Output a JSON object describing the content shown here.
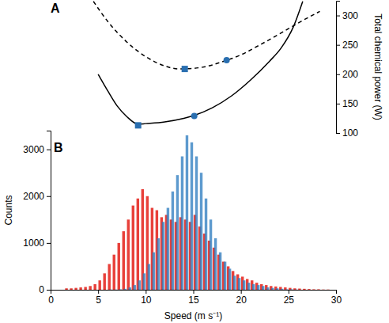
{
  "chart_data": [
    {
      "type": "line",
      "title": "A",
      "ylabel": "Total chemical power (W)",
      "xlim": [
        0,
        30
      ],
      "ylim": [
        100,
        325
      ],
      "yticks": [
        100,
        150,
        200,
        250,
        300
      ],
      "tick_labels": "y",
      "series": [
        {
          "type": "line",
          "color": "#000000",
          "line_style": "dashed",
          "x": [
            4.5,
            6,
            8,
            10,
            12,
            13.6,
            16,
            18,
            20,
            22,
            24,
            26,
            28.3
          ],
          "values": [
            324,
            290,
            255,
            230,
            214,
            209,
            212,
            221,
            233,
            250,
            268,
            287,
            307
          ]
        },
        {
          "type": "line",
          "color": "#000000",
          "line_style": "solid",
          "x": [
            5,
            6,
            7,
            8,
            9.2,
            10,
            12,
            14,
            15.1,
            17,
            19,
            21,
            23,
            24.2,
            25.5,
            26.5
          ],
          "values": [
            200,
            172,
            146,
            128,
            115,
            116,
            119,
            125,
            130,
            143,
            163,
            190,
            222,
            244,
            280,
            324
          ]
        },
        {
          "type": "scatter",
          "color": "#2a6fb0",
          "marker": "square",
          "x": [
            14.1,
            9.2
          ],
          "values": [
            209,
            113
          ]
        },
        {
          "type": "scatter",
          "color": "#2a6fb0",
          "marker": "circle",
          "x": [
            18.5,
            15.1
          ],
          "values": [
            224,
            129
          ]
        }
      ]
    },
    {
      "type": "histogram",
      "title": "B",
      "xlabel": "Speed (m s⁻¹)",
      "ylabel": "Counts",
      "xlim": [
        0,
        30
      ],
      "ylim": [
        0,
        3400
      ],
      "xticks": [
        0,
        5,
        10,
        15,
        20,
        25,
        30
      ],
      "yticks": [
        0,
        1000,
        2000,
        3000
      ],
      "bins": [
        0,
        0.5,
        1,
        1.5,
        2,
        2.5,
        3,
        3.5,
        4,
        4.5,
        5,
        5.5,
        6,
        6.5,
        7,
        7.5,
        8,
        8.5,
        9,
        9.5,
        10,
        10.5,
        11,
        11.5,
        12,
        12.5,
        13,
        13.5,
        14,
        14.5,
        15,
        15.5,
        16,
        16.5,
        17,
        17.5,
        18,
        18.5,
        19,
        19.5,
        20,
        20.5,
        21,
        21.5,
        22,
        22.5,
        23,
        23.5,
        24,
        24.5,
        25,
        25.5,
        26,
        26.5,
        27,
        27.5,
        28,
        28.5,
        29,
        29.5,
        30
      ],
      "series": [
        {
          "color": "#e8403a",
          "values": [
            0,
            0,
            0,
            30,
            30,
            40,
            50,
            60,
            80,
            120,
            200,
            350,
            550,
            750,
            1000,
            1250,
            1500,
            1800,
            1950,
            2150,
            2000,
            1750,
            1700,
            1550,
            1600,
            1500,
            1450,
            1550,
            1500,
            1450,
            1600,
            1350,
            1200,
            1050,
            900,
            750,
            600,
            500,
            400,
            330,
            280,
            230,
            200,
            150,
            120,
            100,
            80,
            70,
            60,
            50,
            40,
            30,
            25,
            20,
            15,
            10,
            10,
            5,
            5,
            0
          ]
        },
        {
          "color": "#2f7ec0",
          "values": [
            0,
            0,
            0,
            0,
            0,
            0,
            0,
            0,
            0,
            0,
            0,
            0,
            5,
            5,
            10,
            20,
            50,
            100,
            200,
            350,
            550,
            800,
            1100,
            1450,
            1750,
            2100,
            2450,
            2850,
            3300,
            3150,
            2850,
            2500,
            1950,
            1500,
            1100,
            800,
            600,
            450,
            300,
            250,
            200,
            150,
            120,
            100,
            80,
            50,
            40,
            30,
            20,
            10,
            10,
            5,
            0,
            0,
            0,
            0,
            0,
            0,
            0,
            0
          ]
        }
      ]
    }
  ]
}
